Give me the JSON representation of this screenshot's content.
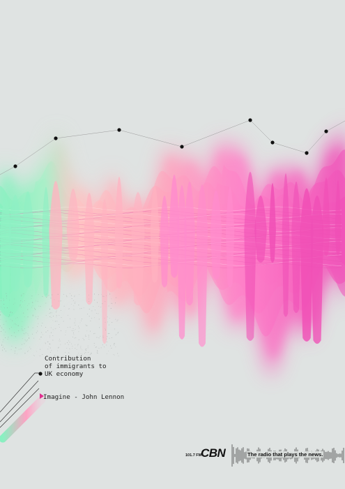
{
  "caption": {
    "line1": "Contribution",
    "line2": "of immigrants to",
    "line3": "UK economy"
  },
  "track": {
    "label": "Imagine - John Lennon",
    "play_icon": "play-icon"
  },
  "brand": {
    "frequency": "101.7 FM",
    "logo": "CBN",
    "tagline": "The radio that plays the news."
  },
  "colors": {
    "background": "#dfe3e2",
    "green": "#7ff2bd",
    "salmon": "#ffb0b8",
    "pink": "#ff89cc",
    "magenta": "#f050b8"
  }
}
